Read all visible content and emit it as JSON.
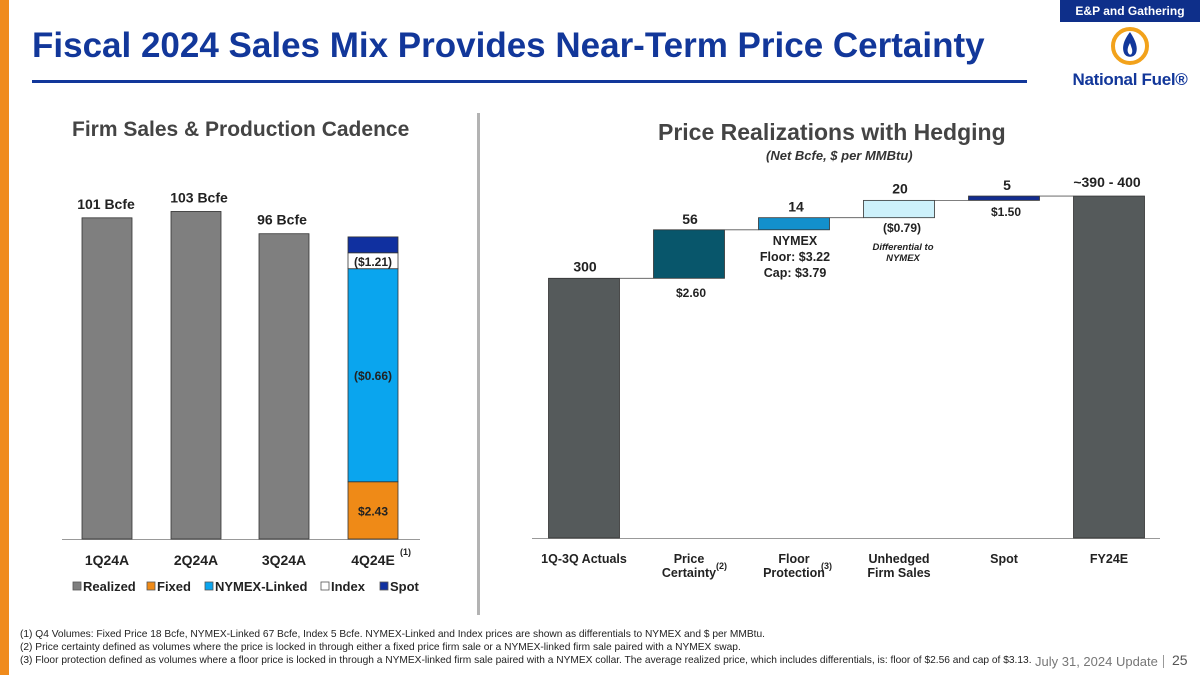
{
  "header": {
    "tag": "E&P and Gathering",
    "title": "Fiscal 2024 Sales Mix Provides Near-Term Price Certainty",
    "logo_text": "National Fuel®"
  },
  "colors": {
    "title_blue": "#12379a",
    "realized": "#7f7f7f",
    "fixed": "#ef8a17",
    "nymex_linked": "#0aa5ee",
    "index": "#ffffff",
    "spot": "#1030a0",
    "actuals": "#555a5b",
    "price_certainty": "#08566b",
    "floor": "#1390cc",
    "unhedged": "#cdf1fb",
    "spot_bar": "#132c8f",
    "fy24e": "#555a5b"
  },
  "left_chart": {
    "title": "Firm Sales & Production Cadence",
    "chart_data": {
      "type": "bar",
      "stacked": true,
      "categories": [
        "1Q24A",
        "2Q24A",
        "3Q24A",
        "4Q24E"
      ],
      "category_superscripts": [
        "",
        "",
        "",
        "(1)"
      ],
      "total_labels": [
        "101 Bcfe",
        "103 Bcfe",
        "96 Bcfe",
        ""
      ],
      "series": [
        {
          "name": "Realized",
          "values": [
            101,
            103,
            96,
            0
          ]
        },
        {
          "name": "Fixed",
          "values": [
            0,
            0,
            0,
            18
          ]
        },
        {
          "name": "NYMEX-Linked",
          "values": [
            0,
            0,
            0,
            67
          ]
        },
        {
          "name": "Index",
          "values": [
            0,
            0,
            0,
            5
          ]
        },
        {
          "name": "Spot",
          "values": [
            0,
            0,
            0,
            5
          ]
        }
      ],
      "segment_labels": {
        "Fixed": "$2.43",
        "NYMEX-Linked": "($0.66)",
        "Index": "($1.21)"
      },
      "ylim": [
        0,
        110
      ],
      "legend": [
        "Realized",
        "Fixed",
        "NYMEX-Linked",
        "Index",
        "Spot"
      ]
    }
  },
  "right_chart": {
    "title": "Price Realizations with Hedging",
    "subtitle": "(Net Bcfe, $ per MMBtu)",
    "chart_data": {
      "type": "waterfall",
      "categories": [
        "1Q-3Q Actuals",
        "Price Certainty",
        "Floor Protection",
        "Unhedged Firm Sales",
        "Spot",
        "FY24E"
      ],
      "category_lines": [
        [
          "1Q-3Q Actuals"
        ],
        [
          "Price",
          "Certainty"
        ],
        [
          "Floor",
          "Protection"
        ],
        [
          "Unhedged",
          "Firm Sales"
        ],
        [
          "Spot"
        ],
        [
          "FY24E"
        ]
      ],
      "category_superscripts": [
        "",
        "(2)",
        "(3)",
        "",
        "",
        ""
      ],
      "values": [
        300,
        56,
        14,
        20,
        5,
        395
      ],
      "value_labels": [
        "300",
        "56",
        "14",
        "20",
        "5",
        "~390 - 400"
      ],
      "annotations": {
        "price_certainty_price": "$2.60",
        "floor_lines": [
          "NYMEX",
          "Floor: $3.22",
          "Cap: $3.79"
        ],
        "unhedged_price": "($0.79)",
        "unhedged_note_lines": [
          "Differential to",
          "NYMEX"
        ],
        "spot_price": "$1.50"
      },
      "ylim": [
        0,
        420
      ]
    }
  },
  "footnotes": [
    "(1)  Q4 Volumes: Fixed Price 18 Bcfe, NYMEX-Linked 67 Bcfe, Index 5 Bcfe.  NYMEX-Linked and Index prices are shown as differentials to NYMEX and $ per MMBtu.",
    "(2)  Price certainty defined as volumes where the price is locked in through either a fixed price firm sale or a NYMEX-linked firm sale paired with a NYMEX swap.",
    "(3)  Floor protection defined as volumes where a floor price is locked in through a NYMEX-linked firm sale paired with a NYMEX collar. The average realized price, which includes differentials, is: floor of $2.56 and cap of $3.13."
  ],
  "footer": {
    "date": "July 31, 2024 Update",
    "page": "25"
  }
}
